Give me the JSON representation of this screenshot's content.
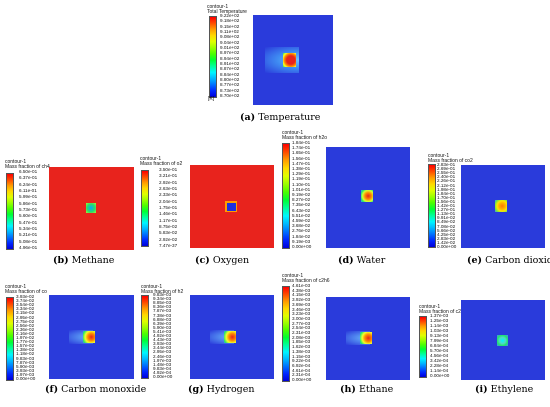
{
  "colorbar_stops": [
    "#ff0000",
    "#ff4a00",
    "#ff9b00",
    "#ffd800",
    "#e0ff00",
    "#9cff00",
    "#4cff00",
    "#00ff33",
    "#00ff9a",
    "#00f6ff",
    "#00b8ff",
    "#0070ff",
    "#0026ff",
    "#0000d8"
  ],
  "panels": [
    {
      "id": "a",
      "label": "(a)",
      "caption": "Temperature",
      "header": [
        "contour-1",
        "Total Temperature"
      ],
      "ticks": [
        "9.22e+02",
        "9.18e+02",
        "9.15e+02",
        "9.11e+02",
        "9.08e+02",
        "9.04e+02",
        "9.01e+02",
        "8.97e+02",
        "8.94e+02",
        "8.91e+02",
        "8.87e+02",
        "8.84e+02",
        "8.80e+02",
        "8.77e+02",
        "8.73e+02",
        "8.70e+02"
      ],
      "units": "[K]"
    },
    {
      "id": "b",
      "label": "(b)",
      "caption": "Methane",
      "header": [
        "contour-1",
        "Mass fraction of ch4"
      ],
      "ticks": [
        "6.50e-01",
        "6.37e-01",
        "6.24e-01",
        "6.11e-01",
        "5.99e-01",
        "5.86e-01",
        "5.73e-01",
        "5.60e-01",
        "5.47e-01",
        "5.34e-01",
        "5.21e-01",
        "5.08e-01",
        "4.96e-01"
      ]
    },
    {
      "id": "c",
      "label": "(c)",
      "caption": "Oxygen",
      "header": [
        "contour-1",
        "Mass fraction of o2"
      ],
      "ticks": [
        "3.50e-01",
        "3.21e-01",
        "2.92e-01",
        "2.63e-01",
        "2.33e-01",
        "2.04e-01",
        "1.75e-01",
        "1.46e-01",
        "1.17e-01",
        "8.75e-02",
        "5.83e-02",
        "2.92e-02",
        "7.47e-37"
      ]
    },
    {
      "id": "d",
      "label": "(d)",
      "caption": "Water",
      "header": [
        "contour-1",
        "Mass fraction of h2o"
      ],
      "ticks": [
        "1.84e-01",
        "1.74e-01",
        "1.65e-01",
        "1.56e-01",
        "1.47e-01",
        "1.38e-01",
        "1.29e-01",
        "1.19e-01",
        "1.10e-01",
        "1.01e-01",
        "9.19e-02",
        "8.27e-02",
        "7.35e-02",
        "6.43e-02",
        "5.51e-02",
        "4.59e-02",
        "3.68e-02",
        "2.76e-02",
        "1.84e-02",
        "9.19e-03",
        "0.00e+00"
      ]
    },
    {
      "id": "e",
      "label": "(e)",
      "caption": "Carbon dioxide",
      "header": [
        "contour-1",
        "Mass fraction of co2"
      ],
      "ticks": [
        "2.83e-01",
        "2.69e-01",
        "2.55e-01",
        "2.40e-01",
        "2.26e-01",
        "2.12e-01",
        "1.98e-01",
        "1.84e-01",
        "1.70e-01",
        "1.56e-01",
        "1.42e-01",
        "1.27e-01",
        "1.13e-01",
        "9.91e-02",
        "8.49e-02",
        "7.08e-02",
        "5.66e-02",
        "4.25e-02",
        "2.83e-02",
        "1.42e-02",
        "0.00e+00"
      ]
    },
    {
      "id": "f",
      "label": "(f)",
      "caption": "Carbon monoxide",
      "header": [
        "contour-1",
        "Mass fraction of co"
      ],
      "ticks": [
        "3.93e-02",
        "3.74e-02",
        "3.54e-02",
        "3.34e-02",
        "3.15e-02",
        "2.95e-02",
        "2.75e-02",
        "2.56e-02",
        "2.36e-02",
        "2.16e-02",
        "1.97e-02",
        "1.77e-02",
        "1.57e-02",
        "1.38e-02",
        "1.18e-02",
        "9.83e-03",
        "7.87e-03",
        "5.90e-03",
        "3.93e-03",
        "1.97e-03",
        "0.00e+00"
      ]
    },
    {
      "id": "g",
      "label": "(g)",
      "caption": "Hydrogen",
      "header": [
        "contour-1",
        "Mass fraction of h2"
      ],
      "ticks": [
        "9.83e-03",
        "9.34e-03",
        "8.85e-03",
        "8.36e-03",
        "7.87e-03",
        "7.38e-03",
        "6.88e-03",
        "6.39e-03",
        "5.90e-03",
        "5.41e-03",
        "4.92e-03",
        "4.43e-03",
        "3.93e-03",
        "3.44e-03",
        "2.95e-03",
        "2.46e-03",
        "1.97e-03",
        "1.48e-03",
        "9.83e-04",
        "4.92e-04",
        "0.00e+00"
      ]
    },
    {
      "id": "h",
      "label": "(h)",
      "caption": "Ethane",
      "header": [
        "contour-1",
        "Mass fraction of c2h6"
      ],
      "ticks": [
        "4.61e-03",
        "4.38e-03",
        "4.15e-03",
        "3.92e-03",
        "3.69e-03",
        "3.46e-03",
        "3.23e-03",
        "3.00e-03",
        "2.77e-03",
        "2.54e-03",
        "2.31e-03",
        "2.08e-03",
        "1.85e-03",
        "1.62e-03",
        "1.38e-03",
        "1.15e-03",
        "9.22e-04",
        "6.92e-04",
        "4.61e-04",
        "2.31e-04",
        "0.00e+00"
      ]
    },
    {
      "id": "i",
      "label": "(i)",
      "caption": "Ethylene",
      "header": [
        "contour-1",
        "Mass fraction of c2h4"
      ],
      "ticks": [
        "1.37e-03",
        "1.25e-03",
        "1.14e-03",
        "1.03e-03",
        "9.13e-04",
        "7.99e-04",
        "6.84e-04",
        "5.70e-04",
        "4.56e-04",
        "3.42e-04",
        "2.28e-04",
        "1.14e-04",
        "0.00e+00"
      ]
    }
  ]
}
